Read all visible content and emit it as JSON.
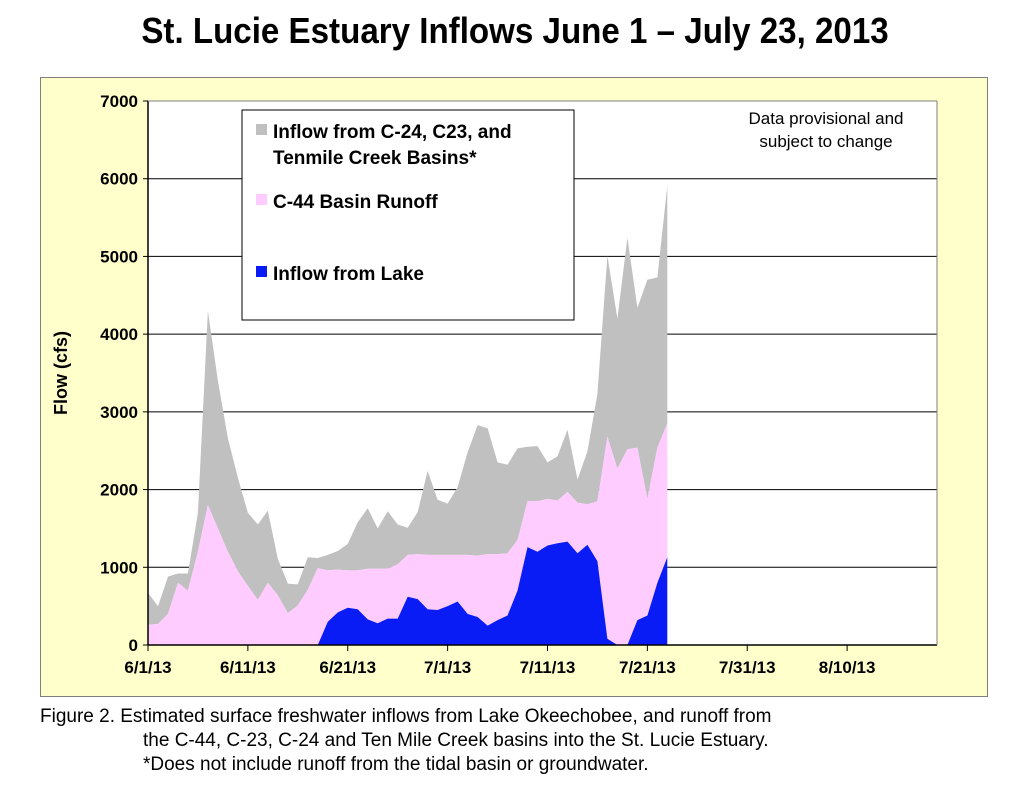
{
  "title": "St. Lucie Estuary Inflows June 1 – July 23, 2013",
  "caption": {
    "line1": "Figure 2.  Estimated surface freshwater inflows from Lake Okeechobee, and runoff from",
    "line2": "the C-44, C-23, C-24 and Ten Mile Creek basins into the St. Lucie Estuary.",
    "line3": "*Does not include runoff from the tidal basin or groundwater."
  },
  "colors": {
    "panel_bg": "#ffffcc",
    "plot_bg": "#ffffff",
    "basins": "#c0c0c0",
    "c44": "#ffccff",
    "lake": "#0a1cf5"
  },
  "chart_data": {
    "type": "area",
    "stacked": true,
    "ylabel": "Flow (cfs)",
    "xlabel": "",
    "ylim": [
      0,
      7000
    ],
    "yticks": [
      "0",
      "1000",
      "2000",
      "3000",
      "4000",
      "5000",
      "6000",
      "7000"
    ],
    "xlim": [
      "2013-06-01",
      "2013-08-19"
    ],
    "xticks": [
      "6/1/13",
      "6/11/13",
      "6/21/13",
      "7/1/13",
      "7/11/13",
      "7/21/13",
      "7/31/13",
      "8/10/13"
    ],
    "grid": "horizontal",
    "legend_position": "top-left",
    "annotation": "Data provisional and\nsubject to change",
    "x": [
      "2013-06-01",
      "2013-06-02",
      "2013-06-03",
      "2013-06-04",
      "2013-06-05",
      "2013-06-06",
      "2013-06-07",
      "2013-06-08",
      "2013-06-09",
      "2013-06-10",
      "2013-06-11",
      "2013-06-12",
      "2013-06-13",
      "2013-06-14",
      "2013-06-15",
      "2013-06-16",
      "2013-06-17",
      "2013-06-18",
      "2013-06-19",
      "2013-06-20",
      "2013-06-21",
      "2013-06-22",
      "2013-06-23",
      "2013-06-24",
      "2013-06-25",
      "2013-06-26",
      "2013-06-27",
      "2013-06-28",
      "2013-06-29",
      "2013-06-30",
      "2013-07-01",
      "2013-07-02",
      "2013-07-03",
      "2013-07-04",
      "2013-07-05",
      "2013-07-06",
      "2013-07-07",
      "2013-07-08",
      "2013-07-09",
      "2013-07-10",
      "2013-07-11",
      "2013-07-12",
      "2013-07-13",
      "2013-07-14",
      "2013-07-15",
      "2013-07-16",
      "2013-07-17",
      "2013-07-18",
      "2013-07-19",
      "2013-07-20",
      "2013-07-21",
      "2013-07-22",
      "2013-07-23"
    ],
    "series": [
      {
        "name": "Inflow from Lake",
        "values": [
          0,
          0,
          0,
          0,
          0,
          0,
          0,
          0,
          0,
          0,
          0,
          0,
          0,
          0,
          0,
          0,
          0,
          0,
          300,
          420,
          480,
          460,
          330,
          280,
          340,
          340,
          620,
          590,
          460,
          450,
          500,
          560,
          400,
          360,
          250,
          320,
          380,
          700,
          1260,
          1200,
          1280,
          1310,
          1330,
          1180,
          1290,
          1080,
          80,
          0,
          0,
          320,
          380,
          800,
          1130
        ]
      },
      {
        "name": "C-44 Basin Runoff",
        "values": [
          260,
          270,
          400,
          800,
          700,
          1200,
          1800,
          1500,
          1200,
          950,
          760,
          580,
          800,
          640,
          410,
          510,
          710,
          990,
          660,
          550,
          480,
          500,
          650,
          700,
          640,
          700,
          540,
          580,
          700,
          710,
          660,
          600,
          760,
          790,
          920,
          850,
          800,
          650,
          590,
          650,
          600,
          550,
          640,
          650,
          520,
          770,
          2600,
          2270,
          2520,
          2220,
          1500,
          1740,
          1720
        ]
      },
      {
        "name": "Inflow from  C-24, C23, and Tenmile Creek Basins*",
        "values": [
          410,
          230,
          480,
          120,
          220,
          500,
          2500,
          1900,
          1460,
          1200,
          940,
          970,
          930,
          470,
          380,
          270,
          420,
          130,
          200,
          240,
          340,
          620,
          780,
          520,
          740,
          510,
          350,
          540,
          1080,
          710,
          660,
          870,
          1320,
          1680,
          1620,
          1180,
          1140,
          1180,
          700,
          710,
          470,
          570,
          800,
          300,
          680,
          1380,
          2330,
          1930,
          2720,
          1800,
          2820,
          2190,
          3060
        ]
      }
    ]
  }
}
